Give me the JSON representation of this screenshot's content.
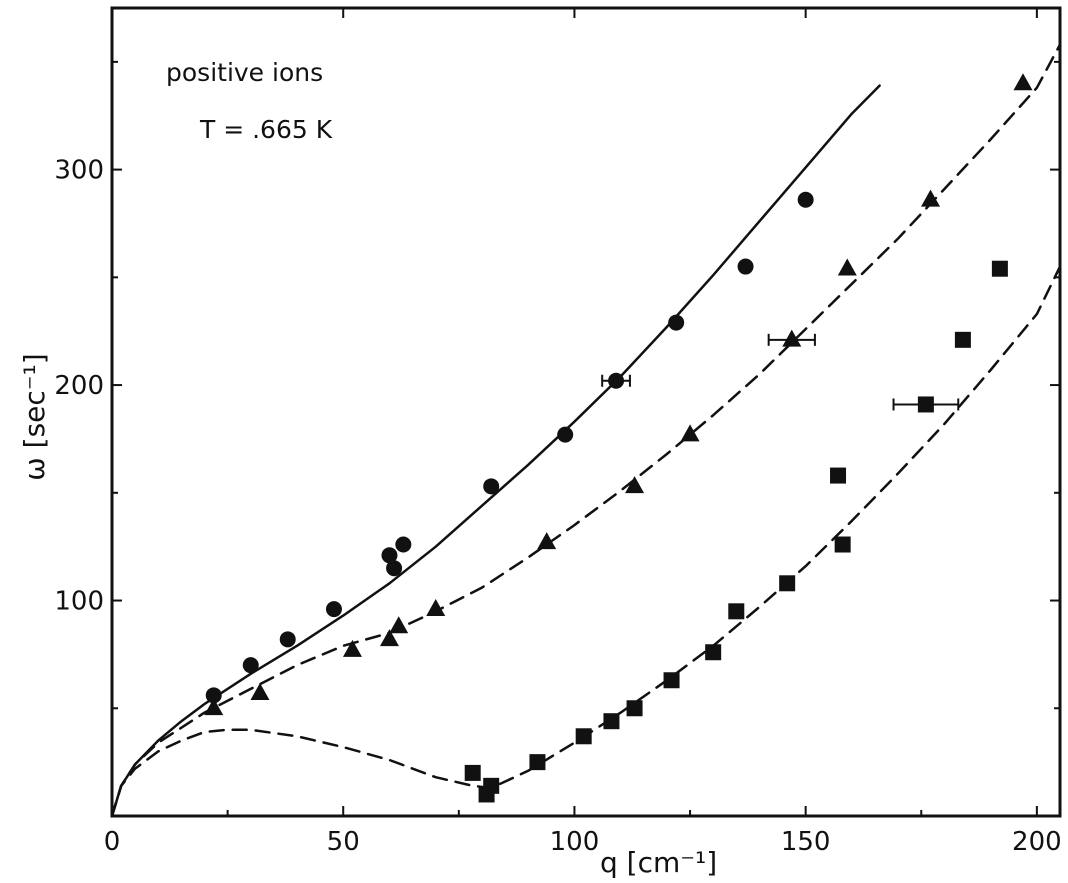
{
  "chart_data": {
    "type": "scatter",
    "annotations": [
      "positive ions",
      "T = .665 K"
    ],
    "xlabel": "q [cm⁻¹]",
    "ylabel": "ω [sec⁻¹]",
    "xlim": [
      0,
      205
    ],
    "ylim": [
      0,
      375
    ],
    "xticks": [
      0,
      50,
      100,
      150,
      200
    ],
    "xtick_labels": [
      "0",
      "50",
      "100",
      "150",
      "200"
    ],
    "yticks": [
      100,
      200,
      300
    ],
    "ytick_labels": [
      "100",
      "200",
      "300"
    ],
    "grid": false,
    "legend": "none",
    "series": [
      {
        "marker": "circle",
        "x": [
          22,
          30,
          38,
          48,
          60,
          61,
          63,
          82,
          98,
          109,
          122,
          137,
          150
        ],
        "y": [
          56,
          70,
          82,
          96,
          121,
          115,
          126,
          153,
          177,
          202,
          229,
          255,
          286
        ],
        "xerr": [
          0,
          0,
          0,
          0,
          0,
          0,
          0,
          0,
          0,
          3,
          0,
          0,
          0
        ]
      },
      {
        "marker": "triangle",
        "x": [
          22,
          32,
          52,
          60,
          62,
          70,
          94,
          113,
          125,
          147,
          159,
          177,
          197
        ],
        "y": [
          50,
          57,
          77,
          82,
          88,
          96,
          127,
          153,
          177,
          221,
          254,
          286,
          340
        ],
        "xerr": [
          0,
          0,
          0,
          0,
          0,
          0,
          0,
          0,
          0,
          5,
          0,
          0,
          0
        ]
      },
      {
        "marker": "square",
        "x": [
          78,
          81,
          82,
          92,
          102,
          108,
          113,
          121,
          130,
          135,
          146,
          157,
          158,
          176,
          184,
          192
        ],
        "y": [
          20,
          10,
          14,
          25,
          37,
          44,
          50,
          63,
          76,
          95,
          108,
          158,
          126,
          191,
          221,
          254
        ],
        "xerr": [
          0,
          0,
          0,
          0,
          0,
          0,
          0,
          0,
          0,
          0,
          0,
          0,
          0,
          7,
          0,
          0
        ]
      }
    ],
    "curves": [
      {
        "style": "solid",
        "x": [
          0,
          2,
          5,
          10,
          15,
          20,
          30,
          40,
          50,
          60,
          70,
          80,
          90,
          100,
          110,
          120,
          130,
          140,
          150,
          160,
          166
        ],
        "y": [
          0,
          14,
          24,
          35,
          44,
          52,
          66,
          79,
          93,
          108,
          125,
          144,
          163,
          183,
          204,
          227,
          251,
          276,
          301,
          326,
          339
        ]
      },
      {
        "style": "dashed",
        "x": [
          0,
          2,
          5,
          10,
          15,
          20,
          30,
          40,
          50,
          60,
          70,
          80,
          90,
          100,
          110,
          120,
          130,
          140,
          150,
          160,
          170,
          180,
          190,
          200,
          205
        ],
        "y": [
          0,
          14,
          24,
          34,
          41,
          48,
          59,
          70,
          79,
          85,
          95,
          106,
          120,
          135,
          151,
          168,
          186,
          205,
          226,
          247,
          268,
          291,
          314,
          338,
          358
        ]
      },
      {
        "style": "dashed",
        "x": [
          0,
          2,
          5,
          10,
          15,
          20,
          25,
          30,
          40,
          50,
          60,
          70,
          78,
          82,
          90,
          100,
          110,
          120,
          130,
          140,
          150,
          160,
          170,
          180,
          190,
          200,
          205
        ],
        "y": [
          0,
          14,
          22,
          30,
          35,
          39,
          40,
          40,
          37,
          32,
          26,
          18,
          14,
          13,
          21,
          34,
          48,
          63,
          79,
          97,
          116,
          137,
          159,
          182,
          207,
          233,
          255
        ]
      }
    ]
  }
}
